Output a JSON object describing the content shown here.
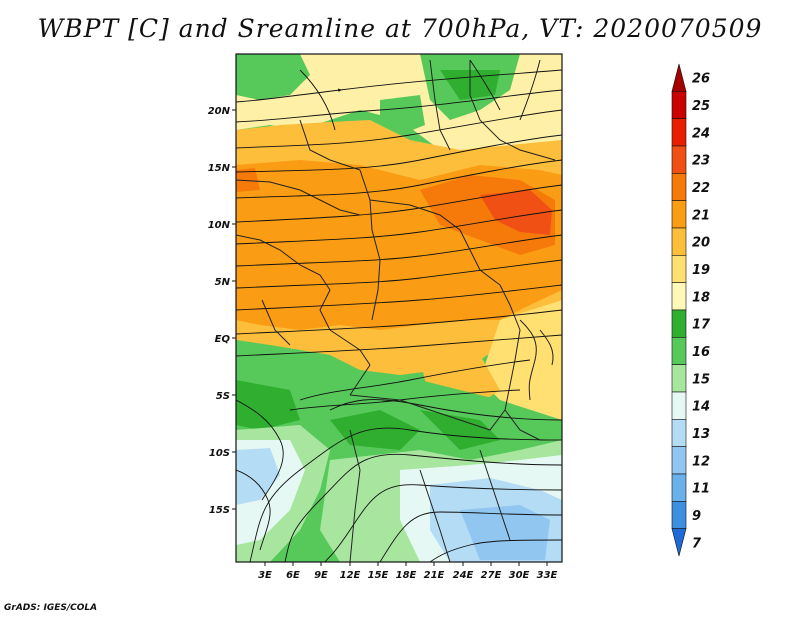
{
  "title": "WBPT [C] and Sreamline at 700hPa, VT: 2020070509",
  "footer": "GrADS: IGES/COLA",
  "map": {
    "variable": "Wet-bulb potential temperature",
    "units": "C",
    "level": "700hPa",
    "valid_time": "2020070509",
    "lat_labels": [
      "20N",
      "15N",
      "10N",
      "5N",
      "EQ",
      "5S",
      "10S",
      "15S"
    ],
    "lon_labels": [
      "3E",
      "6E",
      "9E",
      "12E",
      "15E",
      "18E",
      "21E",
      "24E",
      "27E",
      "30E",
      "33E"
    ]
  },
  "colorbar": {
    "levels": [
      {
        "label": "26",
        "color": "#a50000"
      },
      {
        "label": "25",
        "color": "#c80000"
      },
      {
        "label": "24",
        "color": "#e81e00"
      },
      {
        "label": "23",
        "color": "#f05014"
      },
      {
        "label": "22",
        "color": "#f57a0a"
      },
      {
        "label": "21",
        "color": "#fa9d14"
      },
      {
        "label": "20",
        "color": "#fdbe3c"
      },
      {
        "label": "19",
        "color": "#ffe070"
      },
      {
        "label": "18",
        "color": "#fff8b8"
      },
      {
        "label": "17",
        "color": "#2fae2f"
      },
      {
        "label": "16",
        "color": "#57c95a"
      },
      {
        "label": "15",
        "color": "#a8e6a0"
      },
      {
        "label": "14",
        "color": "#e6f8f3"
      },
      {
        "label": "13",
        "color": "#b4dcf5"
      },
      {
        "label": "12",
        "color": "#90c6f0"
      },
      {
        "label": "11",
        "color": "#6ab0ea"
      },
      {
        "label": "9",
        "color": "#3d8fe0"
      },
      {
        "label": "7",
        "color": "#1e6ad6"
      }
    ]
  }
}
